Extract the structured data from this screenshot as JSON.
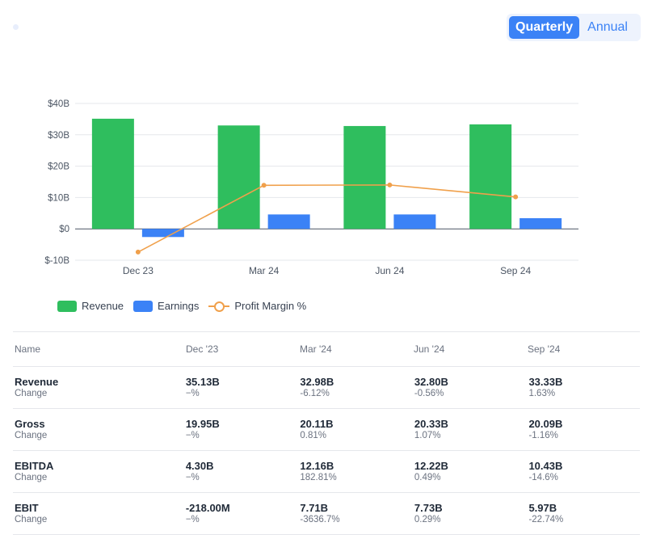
{
  "toggle": {
    "quarterly_label": "Quarterly",
    "annual_label": "Annual",
    "selected": "Quarterly"
  },
  "colors": {
    "revenue": "#2fbe5e",
    "earnings": "#3b82f6",
    "profit_margin": "#f0a04b",
    "grid": "#e5e7eb",
    "axis_text": "#4b5563"
  },
  "chart_data": {
    "type": "bar",
    "categories": [
      "Dec 23",
      "Mar 24",
      "Jun 24",
      "Sep 24"
    ],
    "y_ticks": [
      "$40B",
      "$30B",
      "$20B",
      "$10B",
      "$0",
      "$-10B"
    ],
    "y_tick_values": [
      40,
      30,
      20,
      10,
      0,
      -10
    ],
    "ylim": [
      -10,
      40
    ],
    "grid": true,
    "legend_placement": "bottom-left",
    "series": [
      {
        "name": "Revenue",
        "kind": "bar",
        "values": [
          35.13,
          32.98,
          32.8,
          33.33
        ]
      },
      {
        "name": "Earnings",
        "kind": "bar",
        "values": [
          -2.6,
          4.6,
          4.6,
          3.4
        ]
      },
      {
        "name": "Profit Margin %",
        "kind": "line",
        "values": [
          -7.4,
          13.9,
          14.0,
          10.2
        ]
      }
    ]
  },
  "legend": {
    "items": [
      "Revenue",
      "Earnings",
      "Profit Margin %"
    ]
  },
  "table": {
    "headers": [
      "Name",
      "Dec '23",
      "Mar '24",
      "Jun '24",
      "Sep '24"
    ],
    "change_label": "Change",
    "rows": [
      {
        "name": "Revenue",
        "values": [
          "35.13B",
          "32.98B",
          "32.80B",
          "33.33B"
        ],
        "changes": [
          "−%",
          "-6.12%",
          "-0.56%",
          "1.63%"
        ]
      },
      {
        "name": "Gross",
        "values": [
          "19.95B",
          "20.11B",
          "20.33B",
          "20.09B"
        ],
        "changes": [
          "−%",
          "0.81%",
          "1.07%",
          "-1.16%"
        ]
      },
      {
        "name": "EBITDA",
        "values": [
          "4.30B",
          "12.16B",
          "12.22B",
          "10.43B"
        ],
        "changes": [
          "−%",
          "182.81%",
          "0.49%",
          "-14.6%"
        ]
      },
      {
        "name": "EBIT",
        "values": [
          "-218.00M",
          "7.71B",
          "7.73B",
          "5.97B"
        ],
        "changes": [
          "−%",
          "-3636.7%",
          "0.29%",
          "-22.74%"
        ]
      }
    ]
  }
}
